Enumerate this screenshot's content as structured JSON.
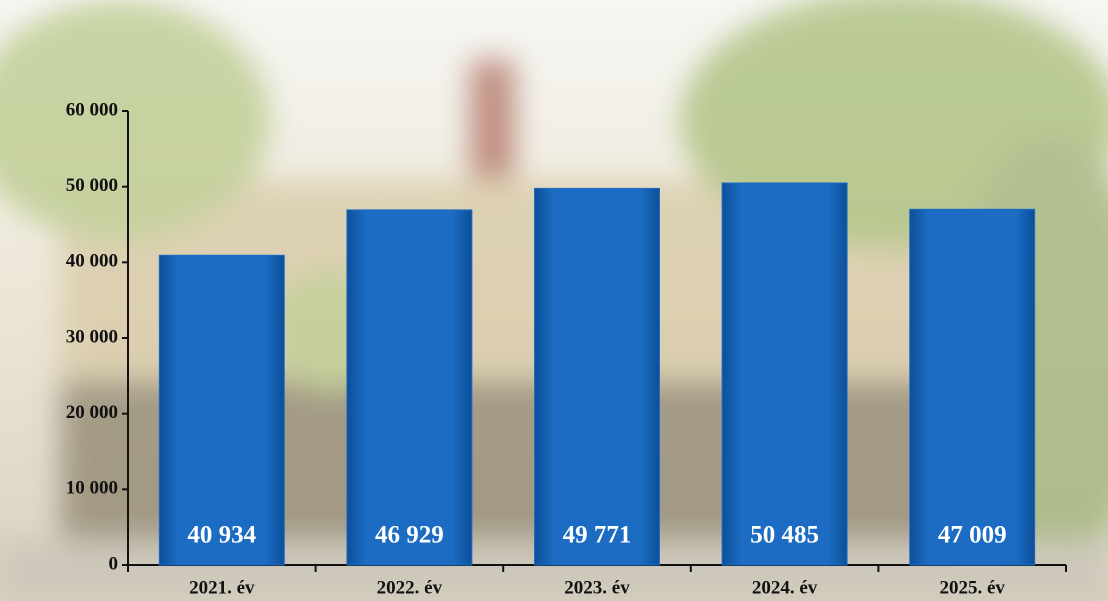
{
  "chart_data": {
    "type": "bar",
    "categories": [
      "2021. év",
      "2022. év",
      "2023. év",
      "2024. év",
      "2025. év"
    ],
    "values": [
      40934,
      46929,
      49771,
      50485,
      47009
    ],
    "value_labels": [
      "40 934",
      "46 929",
      "49 771",
      "50 485",
      "47 009"
    ],
    "color": "#1b6cc2",
    "ylim": [
      0,
      60000
    ],
    "yticks": [
      0,
      {
        "value": 10000,
        "label": "10 000"
      },
      {
        "value": 20000,
        "label": "20 000"
      },
      {
        "value": 30000,
        "label": "30 000"
      },
      {
        "value": 40000,
        "label": "40 000"
      },
      {
        "value": 50000,
        "label": "50 000"
      },
      {
        "value": 60000,
        "label": "60 000"
      }
    ]
  }
}
